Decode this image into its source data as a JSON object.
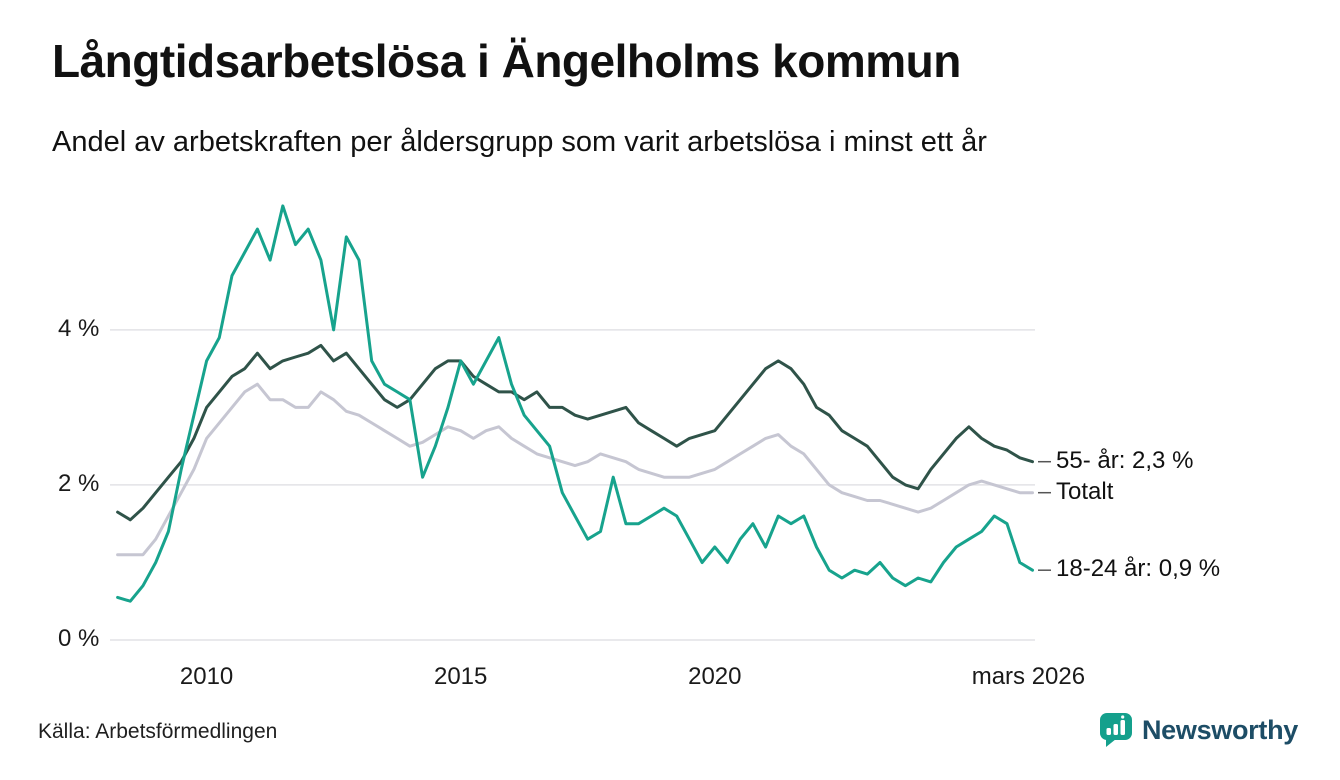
{
  "header": {
    "title": "Långtidsarbetslösa i Ängelholms kommun",
    "subtitle": "Andel av arbetskraften per åldersgrupp som varit arbetslösa i minst ett år"
  },
  "footer": {
    "source": "Källa: Arbetsförmedlingen",
    "brand": "Newsworthy"
  },
  "colors": {
    "teal": "#17a38d",
    "dark_green": "#2f5349",
    "gray": "#c6c6d2",
    "grid": "#e2e2e6",
    "leader_dash": "#555555",
    "brand_icon": "#14a08c",
    "brand_text": "#1d4d66"
  },
  "chart_data": {
    "type": "line",
    "title": "Långtidsarbetslösa i Ängelholms kommun",
    "subtitle": "Andel av arbetskraften per åldersgrupp som varit arbetslösa i minst ett år",
    "unit": "%",
    "x_start": 2008.25,
    "x_step": 0.25,
    "xlim": [
      2008.1,
      2026.3
    ],
    "ylim": [
      0,
      5.74
    ],
    "grid": "horizontal",
    "y_ticks": [
      {
        "value": 0,
        "label": "0 %"
      },
      {
        "value": 2,
        "label": "2 %"
      },
      {
        "value": 4,
        "label": "4 %"
      }
    ],
    "x_axis_ticks": [
      {
        "value": 2010,
        "label": "2010"
      },
      {
        "value": 2015,
        "label": "2015"
      },
      {
        "value": 2020,
        "label": "2020"
      },
      {
        "value": 2026.17,
        "label": "mars 2026"
      }
    ],
    "series": [
      {
        "name": "Totalt",
        "color": "#c6c6d2",
        "end_label": "Totalt",
        "values": [
          1.1,
          1.1,
          1.1,
          1.3,
          1.6,
          1.9,
          2.2,
          2.6,
          2.8,
          3.0,
          3.2,
          3.3,
          3.1,
          3.1,
          3.0,
          3.0,
          3.2,
          3.1,
          2.95,
          2.9,
          2.8,
          2.7,
          2.6,
          2.5,
          2.55,
          2.65,
          2.75,
          2.7,
          2.6,
          2.7,
          2.75,
          2.6,
          2.5,
          2.4,
          2.35,
          2.3,
          2.25,
          2.3,
          2.4,
          2.35,
          2.3,
          2.2,
          2.15,
          2.1,
          2.1,
          2.1,
          2.15,
          2.2,
          2.3,
          2.4,
          2.5,
          2.6,
          2.65,
          2.5,
          2.4,
          2.2,
          2.0,
          1.9,
          1.85,
          1.8,
          1.8,
          1.75,
          1.7,
          1.65,
          1.7,
          1.8,
          1.9,
          2.0,
          2.05,
          2.0,
          1.95,
          1.9,
          1.9
        ]
      },
      {
        "name": "55- år",
        "color": "#2f5349",
        "end_label": "55- år: 2,3 %",
        "values": [
          1.65,
          1.55,
          1.7,
          1.9,
          2.1,
          2.3,
          2.6,
          3.0,
          3.2,
          3.4,
          3.5,
          3.7,
          3.5,
          3.6,
          3.65,
          3.7,
          3.8,
          3.6,
          3.7,
          3.5,
          3.3,
          3.1,
          3.0,
          3.1,
          3.3,
          3.5,
          3.6,
          3.6,
          3.4,
          3.3,
          3.2,
          3.2,
          3.1,
          3.2,
          3.0,
          3.0,
          2.9,
          2.85,
          2.9,
          2.95,
          3.0,
          2.8,
          2.7,
          2.6,
          2.5,
          2.6,
          2.65,
          2.7,
          2.9,
          3.1,
          3.3,
          3.5,
          3.6,
          3.5,
          3.3,
          3.0,
          2.9,
          2.7,
          2.6,
          2.5,
          2.3,
          2.1,
          2.0,
          1.95,
          2.2,
          2.4,
          2.6,
          2.75,
          2.6,
          2.5,
          2.45,
          2.35,
          2.3
        ]
      },
      {
        "name": "18-24 år",
        "color": "#17a38d",
        "end_label": "18-24 år: 0,9 %",
        "values": [
          0.55,
          0.5,
          0.7,
          1.0,
          1.4,
          2.2,
          2.9,
          3.6,
          3.9,
          4.7,
          5.0,
          5.3,
          4.9,
          5.6,
          5.1,
          5.3,
          4.9,
          4.0,
          5.2,
          4.9,
          3.6,
          3.3,
          3.2,
          3.1,
          2.1,
          2.5,
          3.0,
          3.6,
          3.3,
          3.6,
          3.9,
          3.3,
          2.9,
          2.7,
          2.5,
          1.9,
          1.6,
          1.3,
          1.4,
          2.1,
          1.5,
          1.5,
          1.6,
          1.7,
          1.6,
          1.3,
          1.0,
          1.2,
          1.0,
          1.3,
          1.5,
          1.2,
          1.6,
          1.5,
          1.6,
          1.2,
          0.9,
          0.8,
          0.9,
          0.85,
          1.0,
          0.8,
          0.7,
          0.8,
          0.75,
          1.0,
          1.2,
          1.3,
          1.4,
          1.6,
          1.5,
          1.0,
          0.9
        ]
      }
    ]
  }
}
